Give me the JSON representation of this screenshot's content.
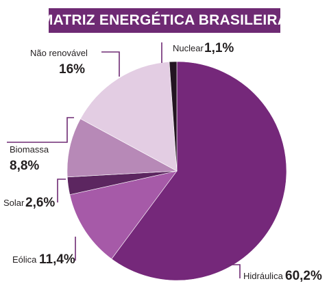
{
  "chart_data": {
    "type": "pie",
    "title": "MATRIZ ENERGÉTICA BRASILEIRA",
    "slices": [
      {
        "name": "Hidráulica",
        "label": "60,2%",
        "value": 60.2,
        "color": "#75287a"
      },
      {
        "name": "Eólica",
        "label": "11,4%",
        "value": 11.4,
        "color": "#a65aa8"
      },
      {
        "name": "Solar",
        "label": "2,6%",
        "value": 2.6,
        "color": "#5c2660"
      },
      {
        "name": "Biomassa",
        "label": "8,8%",
        "value": 8.8,
        "color": "#b789b7"
      },
      {
        "name": "Não renovável",
        "label": "16%",
        "value": 16,
        "color": "#e3cde3"
      },
      {
        "name": "Nuclear",
        "label": "1,1%",
        "value": 1.1,
        "color": "#231421"
      }
    ]
  }
}
